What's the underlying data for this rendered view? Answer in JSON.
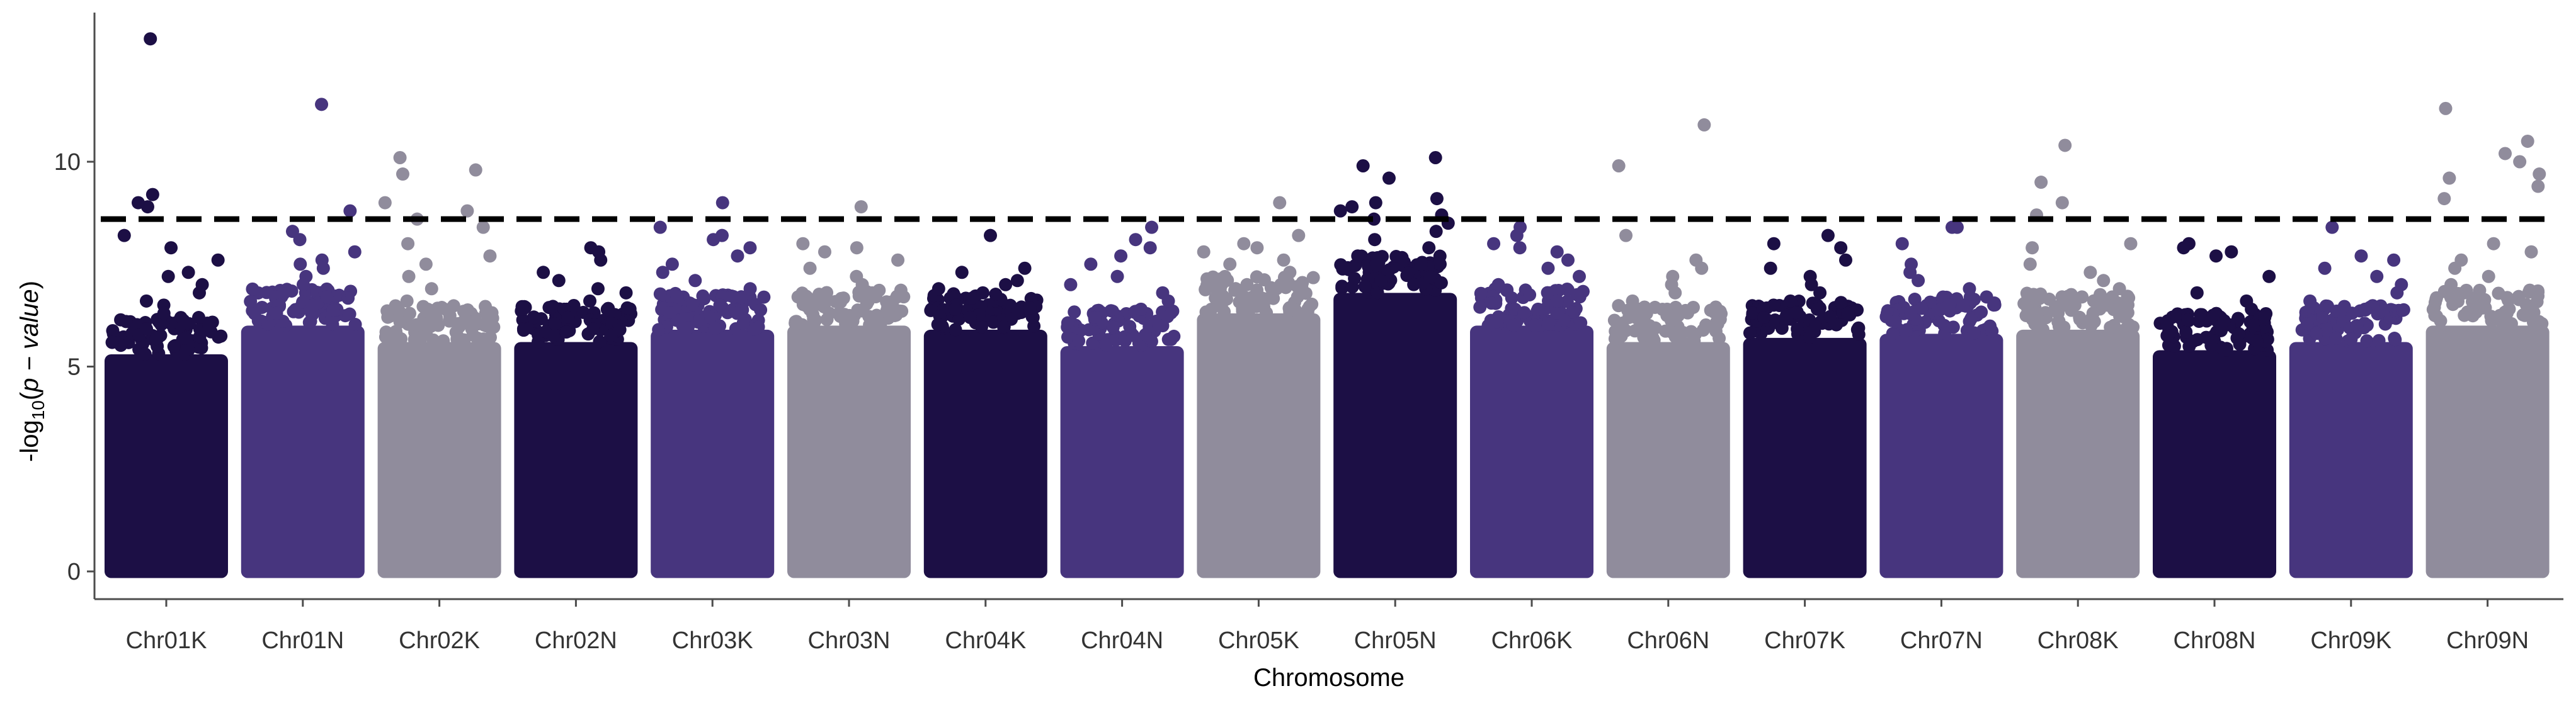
{
  "chart_data": {
    "type": "scatter",
    "subtype": "manhattan",
    "title": "",
    "xlabel": "Chromosome",
    "ylabel_parts": {
      "prefix": "-log",
      "subscript": "10",
      "open": "(",
      "italic": "p − value",
      "close": ")"
    },
    "ylim": [
      0,
      13
    ],
    "yticks": [
      0,
      5,
      10
    ],
    "ytick_labels": [
      "0",
      "5",
      "10"
    ],
    "threshold": 8.6,
    "threshold_style": "dashed",
    "grid": false,
    "legend": "none",
    "colors": [
      "#1c0f45",
      "#47357e",
      "#908c9c"
    ],
    "chromosomes": [
      {
        "name": "Chr01K",
        "color_index": 0,
        "base_top": 5.3,
        "top_points": [
          13.0,
          9.2,
          9.0,
          8.9,
          8.2,
          7.9,
          7.6,
          7.3,
          7.2,
          7.0,
          6.8,
          6.6,
          6.5,
          6.3,
          6.1,
          6.0
        ]
      },
      {
        "name": "Chr01N",
        "color_index": 1,
        "base_top": 6.0,
        "top_points": [
          11.4,
          8.8,
          8.3,
          8.1,
          7.8,
          7.6,
          7.5,
          7.4,
          7.2,
          7.0,
          6.8,
          6.7,
          6.5,
          6.3
        ]
      },
      {
        "name": "Chr02K",
        "color_index": 2,
        "base_top": 5.6,
        "top_points": [
          10.1,
          9.8,
          9.7,
          9.0,
          8.8,
          8.6,
          8.4,
          8.0,
          7.7,
          7.5,
          7.2,
          6.9,
          6.6,
          6.4,
          6.1
        ]
      },
      {
        "name": "Chr02N",
        "color_index": 0,
        "base_top": 5.6,
        "top_points": [
          7.9,
          7.8,
          7.6,
          7.3,
          7.1,
          6.9,
          6.8,
          6.6,
          6.4,
          6.2,
          6.0,
          5.9
        ]
      },
      {
        "name": "Chr03K",
        "color_index": 1,
        "base_top": 5.9,
        "top_points": [
          9.0,
          8.4,
          8.2,
          8.1,
          7.9,
          7.7,
          7.5,
          7.3,
          7.1,
          6.9,
          6.7,
          6.5,
          6.3
        ]
      },
      {
        "name": "Chr03N",
        "color_index": 2,
        "base_top": 6.0,
        "top_points": [
          8.9,
          8.0,
          7.9,
          7.8,
          7.6,
          7.4,
          7.2,
          7.0,
          6.8,
          6.7,
          6.5,
          6.3
        ]
      },
      {
        "name": "Chr04K",
        "color_index": 0,
        "base_top": 5.9,
        "top_points": [
          8.2,
          7.4,
          7.3,
          7.1,
          7.0,
          6.9,
          6.8,
          6.7,
          6.5,
          6.4,
          6.2
        ]
      },
      {
        "name": "Chr04N",
        "color_index": 1,
        "base_top": 5.5,
        "top_points": [
          8.4,
          8.1,
          7.9,
          7.7,
          7.5,
          7.2,
          7.0,
          6.8,
          6.6,
          6.4,
          6.2,
          6.0
        ]
      },
      {
        "name": "Chr05K",
        "color_index": 2,
        "base_top": 6.3,
        "top_points": [
          9.0,
          8.2,
          8.0,
          7.9,
          7.8,
          7.6,
          7.5,
          7.3,
          7.1,
          7.0,
          6.9,
          6.7
        ]
      },
      {
        "name": "Chr05N",
        "color_index": 0,
        "base_top": 6.8,
        "top_points": [
          10.1,
          9.9,
          9.6,
          9.1,
          9.0,
          8.9,
          8.8,
          8.7,
          8.6,
          8.5,
          8.3,
          8.1,
          7.9,
          7.7,
          7.5,
          7.3,
          7.1
        ]
      },
      {
        "name": "Chr06K",
        "color_index": 1,
        "base_top": 6.0,
        "top_points": [
          8.4,
          8.2,
          8.0,
          7.9,
          7.8,
          7.6,
          7.4,
          7.2,
          7.0,
          6.8,
          6.6,
          6.4
        ]
      },
      {
        "name": "Chr06N",
        "color_index": 2,
        "base_top": 5.6,
        "top_points": [
          10.9,
          9.9,
          8.2,
          7.6,
          7.4,
          7.2,
          7.0,
          6.8,
          6.6,
          6.4,
          6.2,
          6.0
        ]
      },
      {
        "name": "Chr07K",
        "color_index": 0,
        "base_top": 5.7,
        "top_points": [
          8.2,
          8.0,
          7.9,
          7.6,
          7.4,
          7.2,
          7.0,
          6.8,
          6.6,
          6.4,
          6.2,
          6.0
        ]
      },
      {
        "name": "Chr07N",
        "color_index": 1,
        "base_top": 5.8,
        "top_points": [
          8.4,
          8.4,
          8.0,
          7.5,
          7.3,
          7.1,
          6.9,
          6.7,
          6.5,
          6.3,
          6.1
        ]
      },
      {
        "name": "Chr08K",
        "color_index": 2,
        "base_top": 5.9,
        "top_points": [
          10.4,
          9.5,
          9.0,
          8.7,
          8.0,
          7.9,
          7.5,
          7.3,
          7.1,
          6.9,
          6.7,
          6.5,
          6.3
        ]
      },
      {
        "name": "Chr08N",
        "color_index": 0,
        "base_top": 5.4,
        "top_points": [
          8.0,
          7.9,
          7.8,
          7.7,
          7.2,
          6.8,
          6.6,
          6.4,
          6.2,
          6.0,
          5.8
        ]
      },
      {
        "name": "Chr09K",
        "color_index": 1,
        "base_top": 5.6,
        "top_points": [
          8.4,
          7.7,
          7.6,
          7.4,
          7.2,
          7.0,
          6.8,
          6.6,
          6.4,
          6.2,
          6.0
        ]
      },
      {
        "name": "Chr09N",
        "color_index": 2,
        "base_top": 6.0,
        "top_points": [
          11.3,
          10.5,
          10.2,
          10.0,
          9.7,
          9.6,
          9.4,
          9.1,
          8.0,
          7.8,
          7.6,
          7.4,
          7.2,
          7.0,
          6.8
        ]
      }
    ]
  }
}
